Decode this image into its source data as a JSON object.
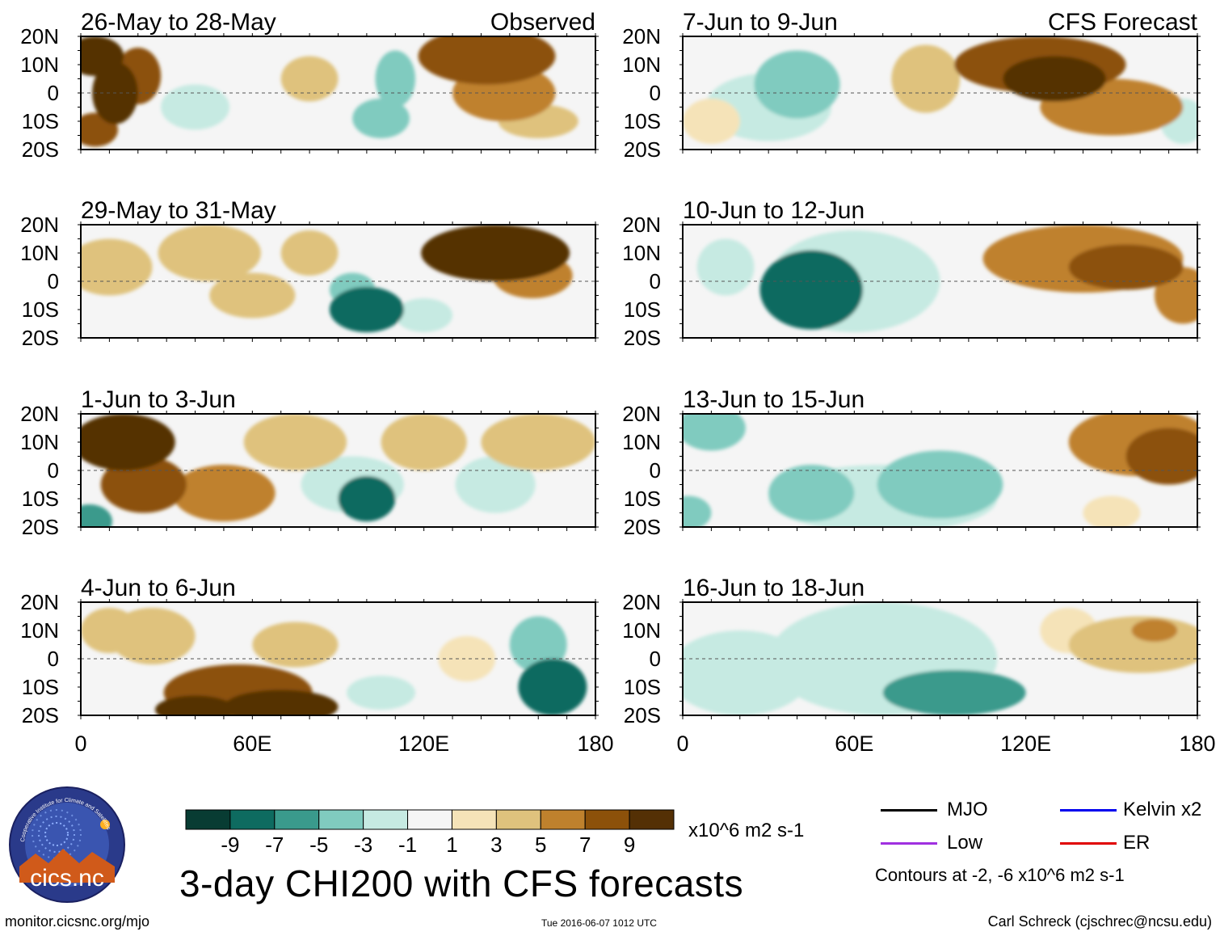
{
  "chart_data": {
    "type": "heatmap",
    "title": "3-day CHI200 with CFS forecasts",
    "units": "x10^6 m2 s-1",
    "panel_kind_labels": {
      "observed": "Observed",
      "forecast": "CFS Forecast"
    },
    "x_ticks": [
      "0",
      "60E",
      "120E",
      "180"
    ],
    "y_ticks": [
      "20N",
      "10N",
      "0",
      "10S",
      "20S"
    ],
    "x_range": [
      0,
      180
    ],
    "y_range": [
      -20,
      20
    ],
    "colorbar": {
      "tick_labels": [
        "-9",
        "-7",
        "-5",
        "-3",
        "-1",
        "1",
        "3",
        "5",
        "7",
        "9"
      ],
      "colors": [
        "#083c33",
        "#0e6b60",
        "#3a9a8c",
        "#80cbbf",
        "#c6eae2",
        "#f5f5f5",
        "#f5e3b8",
        "#dfc27d",
        "#bf812d",
        "#8c510a",
        "#543005"
      ]
    },
    "legend": [
      {
        "label": "MJO",
        "color": "#000000"
      },
      {
        "label": "Kelvin x2",
        "color": "#0000ee"
      },
      {
        "label": "Low",
        "color": "#a030e0"
      },
      {
        "label": "ER",
        "color": "#e00000"
      }
    ],
    "contours_note": "Contours at -2, -6 x10^6 m2 s-1",
    "panels": [
      {
        "period": "26-May to 28-May",
        "kind": "observed",
        "blobs": [
          [
            5,
            13,
            10,
            7,
            9
          ],
          [
            12,
            0,
            8,
            11,
            9
          ],
          [
            5,
            -13,
            8,
            6,
            8
          ],
          [
            20,
            6,
            8,
            10,
            7
          ],
          [
            110,
            5,
            7,
            10,
            -4
          ],
          [
            105,
            -9,
            10,
            7,
            -5
          ],
          [
            142,
            13,
            24,
            10,
            7
          ],
          [
            148,
            0,
            18,
            10,
            5
          ],
          [
            80,
            5,
            10,
            8,
            3
          ],
          [
            160,
            -10,
            14,
            6,
            3
          ],
          [
            40,
            -5,
            12,
            8,
            -3
          ]
        ]
      },
      {
        "period": "29-May to 31-May",
        "kind": "observed",
        "blobs": [
          [
            100,
            -10,
            13,
            8,
            -9
          ],
          [
            95,
            -3,
            8,
            6,
            -4
          ],
          [
            145,
            10,
            26,
            10,
            9
          ],
          [
            158,
            2,
            14,
            8,
            5
          ],
          [
            45,
            10,
            18,
            10,
            4
          ],
          [
            10,
            5,
            15,
            10,
            3
          ],
          [
            60,
            -5,
            15,
            8,
            3
          ],
          [
            80,
            10,
            10,
            8,
            3
          ],
          [
            120,
            -12,
            10,
            6,
            -2
          ]
        ]
      },
      {
        "period": "1-Jun to 3-Jun",
        "kind": "observed",
        "blobs": [
          [
            15,
            10,
            18,
            10,
            9
          ],
          [
            22,
            -5,
            15,
            10,
            8
          ],
          [
            50,
            -8,
            18,
            10,
            5
          ],
          [
            75,
            10,
            18,
            10,
            4
          ],
          [
            100,
            -10,
            10,
            8,
            -8
          ],
          [
            95,
            -5,
            18,
            10,
            -3
          ],
          [
            145,
            -5,
            14,
            10,
            -2
          ],
          [
            120,
            10,
            15,
            10,
            3
          ],
          [
            160,
            10,
            20,
            10,
            3
          ],
          [
            3,
            -18,
            8,
            6,
            -6
          ]
        ]
      },
      {
        "period": "4-Jun to 6-Jun",
        "kind": "observed",
        "blobs": [
          [
            55,
            -12,
            26,
            10,
            8
          ],
          [
            40,
            -18,
            14,
            5,
            9
          ],
          [
            70,
            -17,
            20,
            6,
            9
          ],
          [
            25,
            8,
            15,
            10,
            3
          ],
          [
            75,
            5,
            15,
            8,
            3
          ],
          [
            105,
            -12,
            12,
            6,
            -3
          ],
          [
            165,
            -10,
            12,
            10,
            -8
          ],
          [
            160,
            5,
            10,
            10,
            -4
          ],
          [
            10,
            10,
            10,
            8,
            3
          ],
          [
            135,
            0,
            10,
            8,
            2
          ]
        ]
      },
      {
        "period": "7-Jun to 9-Jun",
        "kind": "forecast",
        "blobs": [
          [
            40,
            3,
            15,
            12,
            -5
          ],
          [
            30,
            -5,
            22,
            12,
            -2
          ],
          [
            125,
            10,
            30,
            10,
            7
          ],
          [
            130,
            5,
            18,
            8,
            9
          ],
          [
            150,
            -5,
            25,
            10,
            5
          ],
          [
            85,
            5,
            12,
            12,
            3
          ],
          [
            10,
            -10,
            10,
            8,
            2
          ],
          [
            175,
            -10,
            8,
            8,
            -2
          ]
        ]
      },
      {
        "period": "10-Jun to 12-Jun",
        "kind": "forecast",
        "blobs": [
          [
            45,
            -3,
            18,
            14,
            -9
          ],
          [
            45,
            -5,
            12,
            8,
            -8
          ],
          [
            60,
            0,
            30,
            18,
            -3
          ],
          [
            140,
            8,
            35,
            12,
            5
          ],
          [
            155,
            5,
            20,
            8,
            7
          ],
          [
            15,
            5,
            10,
            10,
            -2
          ],
          [
            175,
            -5,
            10,
            10,
            5
          ]
        ]
      },
      {
        "period": "13-Jun to 15-Jun",
        "kind": "forecast",
        "blobs": [
          [
            90,
            -5,
            22,
            12,
            -5
          ],
          [
            45,
            -8,
            15,
            10,
            -4
          ],
          [
            10,
            15,
            12,
            8,
            -5
          ],
          [
            70,
            -10,
            40,
            12,
            -2
          ],
          [
            160,
            10,
            25,
            12,
            6
          ],
          [
            170,
            5,
            15,
            10,
            7
          ],
          [
            150,
            -15,
            10,
            6,
            2
          ],
          [
            2,
            -15,
            8,
            6,
            -4
          ]
        ]
      },
      {
        "period": "16-Jun to 18-Jun",
        "kind": "forecast",
        "blobs": [
          [
            95,
            -12,
            25,
            8,
            -6
          ],
          [
            20,
            -5,
            25,
            15,
            -3
          ],
          [
            70,
            0,
            40,
            20,
            -2
          ],
          [
            160,
            5,
            25,
            10,
            3
          ],
          [
            165,
            10,
            8,
            4,
            5
          ],
          [
            135,
            10,
            10,
            8,
            2
          ]
        ]
      }
    ]
  },
  "footer": {
    "left": "monitor.cicsnc.org/mjo",
    "middle": "Tue 2016-06-07 1012 UTC",
    "right": "Carl Schreck (cjschrec@ncsu.edu)"
  },
  "logo": {
    "ring_text": "Cooperative Institute for Climate and Satellites",
    "name": "cics.nc"
  }
}
